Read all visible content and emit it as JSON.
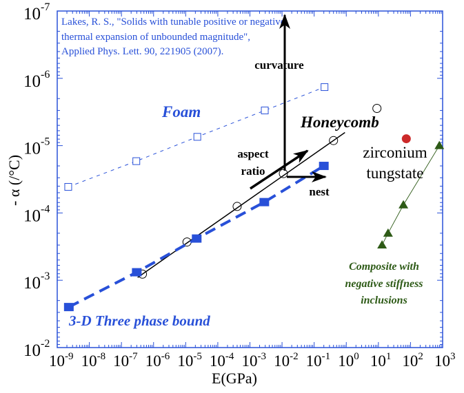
{
  "chart_data": {
    "type": "scatter",
    "title": "",
    "xlabel": "E(GPa)",
    "ylabel": "- α (/°C)",
    "xscale": "log",
    "yscale": "log",
    "xlim": [
      1e-09,
      1000.0
    ],
    "ylim": [
      1e-07,
      0.01
    ],
    "y_axis_inverted_labels": true,
    "x_ticks": [
      "-9",
      "-8",
      "-7",
      "-6",
      "-5",
      "-4",
      "-3",
      "-2",
      "-1",
      "0",
      "1",
      "2",
      "3"
    ],
    "y_ticks": [
      "-7",
      "-6",
      "-5",
      "-4",
      "-3",
      "-2"
    ],
    "tick_base": "10",
    "citation": [
      "Lakes, R. S., \"Solids with tunable positive or negative",
      "thermal expansion of unbounded magnitude\",",
      "Applied Phys. Lett.  90, 221905 (2007)."
    ],
    "series": [
      {
        "name": "Foam",
        "color": "#2850d8",
        "marker": "open-square",
        "line": "dashed-thin",
        "x": [
          2.2e-09,
          2.9e-07,
          2.3e-05,
          0.0029,
          0.21
        ],
        "y": [
          4.1e-05,
          1.7e-05,
          7.4e-06,
          3e-06,
          1.35e-06
        ]
      },
      {
        "name": "Honeycomb",
        "color": "#000000",
        "marker": "open-circle",
        "line": "solid",
        "x": [
          4.5e-07,
          1.1e-05,
          0.0004,
          0.011,
          0.4
        ],
        "y": [
          0.00081,
          0.00027,
          8e-05,
          2.6e-05,
          8.4e-06
        ]
      },
      {
        "name": "Honeycomb (outlier)",
        "color": "#000000",
        "marker": "open-circle",
        "line": "none",
        "x": [
          9
        ],
        "y": [
          2.8e-06
        ]
      },
      {
        "name": "3-D Three phase bound",
        "color": "#2850d8",
        "marker": "filled-square",
        "line": "dashed-thick",
        "x": [
          2.3e-09,
          3e-07,
          2.2e-05,
          0.0028,
          0.2
        ],
        "y": [
          0.0025,
          0.00076,
          0.00024,
          6.9e-05,
          2e-05
        ]
      },
      {
        "name": "zirconium tungstate",
        "color": "#cc2a2a",
        "marker": "filled-circle",
        "line": "none",
        "x": [
          74
        ],
        "y": [
          7.9e-06
        ]
      },
      {
        "name": "Composite with negative stiffness inclusions",
        "color": "#2d5a16",
        "marker": "filled-triangle",
        "line": "solid-thin",
        "x": [
          13,
          20,
          60,
          790
        ],
        "y": [
          0.0003,
          0.0002,
          7.6e-05,
          1e-05
        ]
      }
    ],
    "annotations": {
      "foam": "Foam",
      "honeycomb": "Honeycomb",
      "bound": "3-D Three phase bound",
      "zirconium": [
        "zirconium",
        "tungstate"
      ],
      "composite": [
        "Composite with",
        "negative stiffness",
        "inclusions"
      ],
      "curvature": "curvature",
      "aspect": [
        "aspect",
        "ratio"
      ],
      "nest": "nest"
    },
    "colors": {
      "axis": "#2850d8",
      "blue": "#2850d8",
      "green": "#2d5a16",
      "red": "#cc2a2a"
    }
  }
}
